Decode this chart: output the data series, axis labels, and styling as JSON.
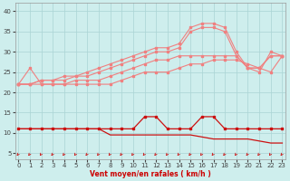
{
  "x": [
    0,
    1,
    2,
    3,
    4,
    5,
    6,
    7,
    8,
    9,
    10,
    11,
    12,
    13,
    14,
    15,
    16,
    17,
    18,
    19,
    20,
    21,
    22,
    23
  ],
  "line_top": [
    22,
    22,
    23,
    23,
    24,
    24,
    25,
    26,
    27,
    28,
    29,
    30,
    31,
    31,
    32,
    36,
    37,
    37,
    36,
    30,
    26,
    25,
    30,
    29
  ],
  "line_upper": [
    22,
    22,
    23,
    23,
    23,
    24,
    24,
    25,
    26,
    27,
    28,
    29,
    30,
    30,
    31,
    35,
    36,
    36,
    35,
    29,
    26,
    26,
    29,
    29
  ],
  "line_mid": [
    22,
    22,
    22,
    22,
    22,
    23,
    23,
    23,
    24,
    25,
    26,
    27,
    28,
    28,
    29,
    29,
    29,
    29,
    29,
    29,
    26,
    26,
    29,
    29
  ],
  "line_lower": [
    22,
    26,
    22,
    22,
    22,
    22,
    22,
    22,
    22,
    23,
    24,
    25,
    25,
    25,
    26,
    27,
    27,
    28,
    28,
    28,
    27,
    26,
    25,
    29
  ],
  "line_flat": [
    11,
    11,
    11,
    11,
    11,
    11,
    11,
    11,
    11,
    11,
    11,
    14,
    14,
    11,
    11,
    11,
    14,
    14,
    11,
    11,
    11,
    11,
    11,
    11
  ],
  "line_decay": [
    11,
    11,
    11,
    11,
    11,
    11,
    11,
    11,
    9.5,
    9.5,
    9.5,
    9.5,
    9.5,
    9.5,
    9.5,
    9.5,
    9,
    8.5,
    8.5,
    8.5,
    8.5,
    8,
    7.5,
    7.5
  ],
  "color_light": "#f08080",
  "color_dark": "#cc1111",
  "bg_color": "#ceeeed",
  "grid_color": "#aad4d4",
  "xlabel": "Vent moyen/en rafales ( km/h )",
  "yticks": [
    5,
    10,
    15,
    20,
    25,
    30,
    35,
    40
  ],
  "xticks": [
    0,
    1,
    2,
    3,
    4,
    5,
    6,
    7,
    8,
    9,
    10,
    11,
    12,
    13,
    14,
    15,
    16,
    17,
    18,
    19,
    20,
    21,
    22,
    23
  ],
  "ylim": [
    3.5,
    42
  ],
  "xlim": [
    -0.3,
    23.3
  ]
}
